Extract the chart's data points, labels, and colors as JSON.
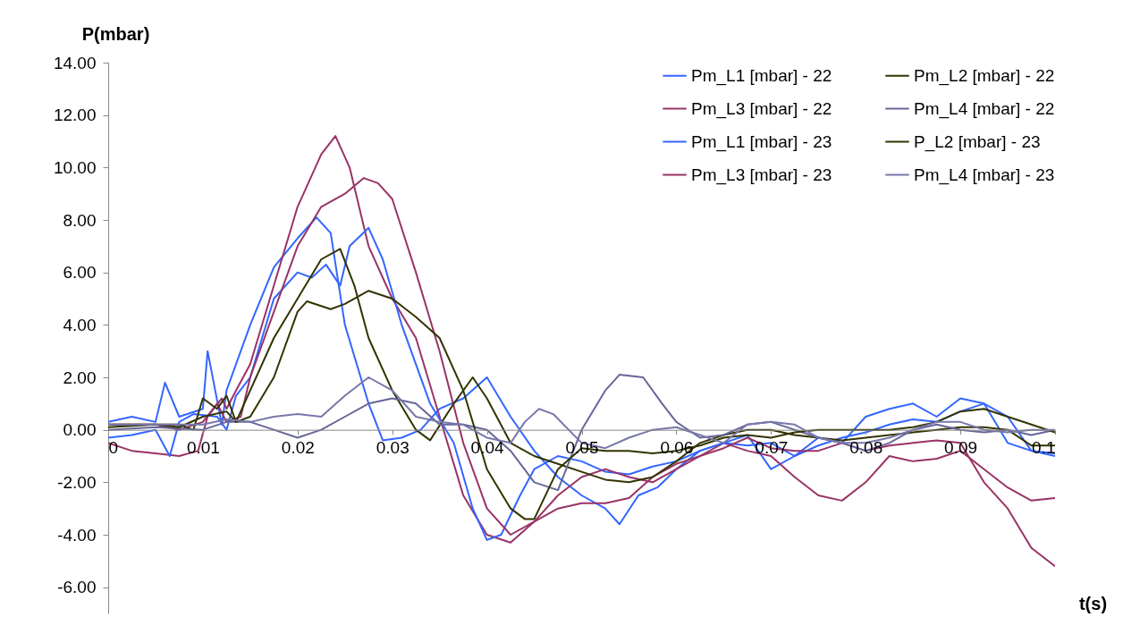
{
  "chart_data": {
    "type": "line",
    "xlabel": "t(s)",
    "ylabel": "P(mbar)",
    "xlim": [
      0,
      0.1
    ],
    "ylim": [
      -7,
      14
    ],
    "xticks": [
      0,
      0.01,
      0.02,
      0.03,
      0.04,
      0.05,
      0.06,
      0.07,
      0.08,
      0.09,
      0.1
    ],
    "yticks": [
      {
        "value": -6,
        "label": "-6.00"
      },
      {
        "value": -4,
        "label": "-4.00"
      },
      {
        "value": -2,
        "label": "-2.00"
      },
      {
        "value": 0,
        "label": "0.00"
      },
      {
        "value": 2,
        "label": "2.00"
      },
      {
        "value": 4,
        "label": "4.00"
      },
      {
        "value": 6,
        "label": "6.00"
      },
      {
        "value": 8,
        "label": "8.00"
      },
      {
        "value": 10,
        "label": "10.00"
      },
      {
        "value": 12,
        "label": "12.00"
      },
      {
        "value": 14,
        "label": "14.00"
      }
    ],
    "legend": "top right",
    "series": [
      {
        "name": "Pm_L1 [mbar] - 22",
        "color": "#3366ff",
        "x": [
          0,
          0.0025,
          0.005,
          0.006,
          0.0075,
          0.01,
          0.0105,
          0.012,
          0.0125,
          0.015,
          0.0175,
          0.02,
          0.022,
          0.0235,
          0.025,
          0.0275,
          0.029,
          0.031,
          0.033,
          0.035,
          0.0375,
          0.04,
          0.0425,
          0.045,
          0.0475,
          0.05,
          0.0525,
          0.054,
          0.056,
          0.058,
          0.06,
          0.0625,
          0.065,
          0.0675,
          0.07,
          0.0725,
          0.075,
          0.0775,
          0.08,
          0.0825,
          0.085,
          0.0875,
          0.09,
          0.0925,
          0.095,
          0.0975,
          0.1
        ],
        "values": [
          0.3,
          0.5,
          0.3,
          1.8,
          0.5,
          0.8,
          3.0,
          0.2,
          1.5,
          4.0,
          6.2,
          7.3,
          8.1,
          7.5,
          4.0,
          1.0,
          -0.4,
          -0.3,
          0.0,
          0.8,
          1.2,
          2.0,
          0.5,
          -0.8,
          -1.8,
          -2.5,
          -3.0,
          -3.6,
          -2.5,
          -2.2,
          -1.5,
          -0.8,
          -0.5,
          -0.2,
          -1.5,
          -1.0,
          -0.3,
          -0.5,
          0.5,
          0.8,
          1.0,
          0.5,
          1.2,
          1.0,
          0.5,
          -0.8,
          -1.0
        ]
      },
      {
        "name": "Pm_L3 [mbar] - 22",
        "color": "#993366",
        "x": [
          0,
          0.0025,
          0.005,
          0.0075,
          0.0095,
          0.0105,
          0.012,
          0.0125,
          0.0135,
          0.015,
          0.0175,
          0.02,
          0.0225,
          0.024,
          0.0255,
          0.0275,
          0.03,
          0.0325,
          0.035,
          0.0375,
          0.04,
          0.0425,
          0.045,
          0.0475,
          0.05,
          0.0525,
          0.055,
          0.0575,
          0.06,
          0.0625,
          0.065,
          0.0675,
          0.07,
          0.0725,
          0.075,
          0.0775,
          0.08,
          0.0825,
          0.085,
          0.0875,
          0.09,
          0.0925,
          0.095,
          0.0975,
          0.1
        ],
        "values": [
          -0.5,
          -0.8,
          -0.9,
          -1.0,
          -0.8,
          0.5,
          1.2,
          0.8,
          1.5,
          2.5,
          5.5,
          8.5,
          10.5,
          11.2,
          10.0,
          7.0,
          5.0,
          3.5,
          0.5,
          -2.5,
          -4.0,
          -4.3,
          -3.5,
          -3.0,
          -2.8,
          -2.8,
          -2.6,
          -1.8,
          -1.3,
          -1.0,
          -0.5,
          -0.8,
          -1.0,
          -1.8,
          -2.5,
          -2.7,
          -2.0,
          -1.0,
          -1.2,
          -1.1,
          -0.8,
          -1.5,
          -2.2,
          -2.7,
          -2.6
        ]
      },
      {
        "name": "Pm_L1 [mbar] - 23",
        "color": "#3366ff",
        "x": [
          0,
          0.0025,
          0.005,
          0.0065,
          0.0075,
          0.009,
          0.0115,
          0.0125,
          0.0135,
          0.015,
          0.0175,
          0.02,
          0.0215,
          0.023,
          0.0245,
          0.0255,
          0.0275,
          0.029,
          0.031,
          0.0325,
          0.034,
          0.0365,
          0.0385,
          0.04,
          0.0415,
          0.0435,
          0.045,
          0.0475,
          0.05,
          0.0525,
          0.055,
          0.0575,
          0.06,
          0.0625,
          0.065,
          0.0675,
          0.07,
          0.0725,
          0.075,
          0.0775,
          0.08,
          0.0825,
          0.085,
          0.0875,
          0.09,
          0.0925,
          0.095,
          0.0975,
          0.1
        ],
        "values": [
          -0.3,
          -0.2,
          0.0,
          -1.0,
          0.3,
          0.6,
          0.5,
          0.0,
          1.3,
          2.0,
          5.0,
          6.0,
          5.8,
          6.3,
          5.5,
          7.0,
          7.7,
          6.5,
          4.0,
          2.5,
          1.0,
          -0.5,
          -3.0,
          -4.2,
          -4.0,
          -2.5,
          -1.5,
          -1.0,
          -1.2,
          -1.6,
          -1.7,
          -1.4,
          -1.2,
          -0.8,
          -0.5,
          -0.6,
          -0.5,
          -1.0,
          -0.6,
          -0.3,
          -0.1,
          0.2,
          0.4,
          0.3,
          0.7,
          1.0,
          -0.5,
          -0.8,
          -0.9
        ]
      },
      {
        "name": "Pm_L3 [mbar] - 23",
        "color": "#993366",
        "x": [
          0,
          0.005,
          0.0075,
          0.01,
          0.0115,
          0.0125,
          0.014,
          0.015,
          0.0175,
          0.02,
          0.0225,
          0.025,
          0.027,
          0.0285,
          0.03,
          0.0325,
          0.035,
          0.0375,
          0.04,
          0.0425,
          0.045,
          0.0475,
          0.05,
          0.0525,
          0.055,
          0.0575,
          0.06,
          0.0625,
          0.065,
          0.0675,
          0.07,
          0.0725,
          0.075,
          0.0775,
          0.08,
          0.0825,
          0.085,
          0.0875,
          0.09,
          0.0925,
          0.095,
          0.0975,
          0.1
        ],
        "values": [
          0.2,
          0.2,
          0.0,
          0.3,
          1.0,
          0.3,
          0.5,
          2.0,
          4.5,
          7.0,
          8.5,
          9.0,
          9.6,
          9.4,
          8.8,
          6.0,
          3.0,
          -0.5,
          -3.0,
          -4.0,
          -3.5,
          -2.5,
          -1.8,
          -1.5,
          -1.8,
          -2.0,
          -1.5,
          -1.0,
          -0.7,
          -0.3,
          -0.7,
          -0.8,
          -0.8,
          -0.5,
          -0.8,
          -0.6,
          -0.5,
          -0.4,
          -0.5,
          -2.0,
          -3.0,
          -4.5,
          -5.2
        ]
      },
      {
        "name": "Pm_L2 [mbar] - 22",
        "color": "#333300",
        "x": [
          0,
          0.005,
          0.0075,
          0.009,
          0.01,
          0.0115,
          0.0125,
          0.0135,
          0.015,
          0.0175,
          0.02,
          0.0225,
          0.0245,
          0.026,
          0.0275,
          0.03,
          0.0325,
          0.034,
          0.0365,
          0.0385,
          0.04,
          0.0425,
          0.045,
          0.0475,
          0.05,
          0.0525,
          0.055,
          0.0575,
          0.06,
          0.0625,
          0.065,
          0.0675,
          0.07,
          0.0725,
          0.075,
          0.0775,
          0.08,
          0.0825,
          0.085,
          0.0875,
          0.09,
          0.0925,
          0.095,
          0.0975,
          0.1
        ],
        "values": [
          0.1,
          0.2,
          0.2,
          0.0,
          1.2,
          0.8,
          1.3,
          0.3,
          1.5,
          3.5,
          5.0,
          6.5,
          6.9,
          5.5,
          3.5,
          1.5,
          0.0,
          -0.4,
          1.0,
          2.0,
          1.2,
          -0.5,
          -1.0,
          -1.3,
          -1.6,
          -1.9,
          -2.0,
          -1.8,
          -1.2,
          -0.5,
          -0.2,
          0.0,
          0.0,
          -0.2,
          -0.3,
          -0.4,
          -0.3,
          -0.2,
          -0.1,
          0.0,
          0.1,
          0.1,
          0.0,
          -0.6,
          -0.6
        ]
      },
      {
        "name": "Pm_L4 [mbar] - 22",
        "color": "#666699",
        "x": [
          0,
          0.005,
          0.01,
          0.0125,
          0.015,
          0.0175,
          0.02,
          0.0225,
          0.025,
          0.0275,
          0.03,
          0.0325,
          0.035,
          0.0375,
          0.04,
          0.0425,
          0.045,
          0.0475,
          0.05,
          0.0525,
          0.054,
          0.0565,
          0.0585,
          0.06,
          0.0625,
          0.065,
          0.0675,
          0.07,
          0.0725,
          0.075,
          0.0775,
          0.08,
          0.0825,
          0.085,
          0.0875,
          0.09,
          0.0925,
          0.095,
          0.0975,
          0.1
        ],
        "values": [
          0.0,
          0.1,
          0.0,
          0.3,
          0.3,
          0.0,
          -0.3,
          0.0,
          0.5,
          1.0,
          1.2,
          1.0,
          0.2,
          0.2,
          0.0,
          -0.8,
          -2.0,
          -2.3,
          0.0,
          1.5,
          2.1,
          2.0,
          1.0,
          0.3,
          -0.3,
          -0.2,
          0.2,
          0.3,
          0.0,
          -0.3,
          -0.5,
          -0.8,
          -0.5,
          0.0,
          0.2,
          0.0,
          -0.1,
          0.0,
          -0.2,
          0.0
        ]
      },
      {
        "name": "P_L2 [mbar] - 23",
        "color": "#333300",
        "x": [
          0,
          0.005,
          0.0075,
          0.01,
          0.0125,
          0.0135,
          0.015,
          0.0175,
          0.02,
          0.021,
          0.0235,
          0.025,
          0.0275,
          0.03,
          0.0325,
          0.035,
          0.0375,
          0.04,
          0.0425,
          0.044,
          0.045,
          0.0475,
          0.05,
          0.0525,
          0.055,
          0.0575,
          0.06,
          0.0625,
          0.065,
          0.0675,
          0.07,
          0.0725,
          0.075,
          0.0775,
          0.08,
          0.0825,
          0.085,
          0.0875,
          0.09,
          0.0925,
          0.095,
          0.0975,
          0.1
        ],
        "values": [
          0.2,
          0.2,
          0.1,
          0.5,
          0.7,
          0.3,
          0.5,
          2.0,
          4.5,
          4.9,
          4.6,
          4.8,
          5.3,
          5.0,
          4.3,
          3.5,
          1.5,
          -1.5,
          -3.0,
          -3.4,
          -3.4,
          -1.5,
          -0.7,
          -0.8,
          -0.8,
          -0.9,
          -0.8,
          -0.6,
          -0.3,
          -0.2,
          -0.3,
          -0.1,
          0.0,
          0.0,
          0.0,
          0.0,
          0.1,
          0.3,
          0.7,
          0.8,
          0.5,
          0.2,
          -0.1
        ]
      },
      {
        "name": "Pm_L4 [mbar] - 23",
        "color": "#7777aa",
        "x": [
          0,
          0.005,
          0.01,
          0.0125,
          0.015,
          0.0175,
          0.02,
          0.0225,
          0.025,
          0.0275,
          0.03,
          0.0325,
          0.035,
          0.0375,
          0.04,
          0.0425,
          0.044,
          0.0455,
          0.047,
          0.05,
          0.0525,
          0.055,
          0.0575,
          0.06,
          0.0625,
          0.065,
          0.0675,
          0.07,
          0.0725,
          0.075,
          0.0775,
          0.08,
          0.0825,
          0.085,
          0.0875,
          0.09,
          0.0925,
          0.095,
          0.0975,
          0.1
        ],
        "values": [
          0.2,
          0.2,
          0.2,
          0.4,
          0.3,
          0.5,
          0.6,
          0.5,
          1.3,
          2.0,
          1.5,
          0.5,
          0.3,
          0.2,
          -0.3,
          -0.5,
          0.3,
          0.8,
          0.6,
          -0.5,
          -0.7,
          -0.3,
          0.0,
          0.1,
          -0.2,
          -0.5,
          0.2,
          0.3,
          0.2,
          -0.3,
          -0.5,
          -0.5,
          -0.3,
          0.0,
          0.3,
          0.3,
          0.0,
          -0.1,
          0.0,
          0.0
        ]
      }
    ]
  }
}
